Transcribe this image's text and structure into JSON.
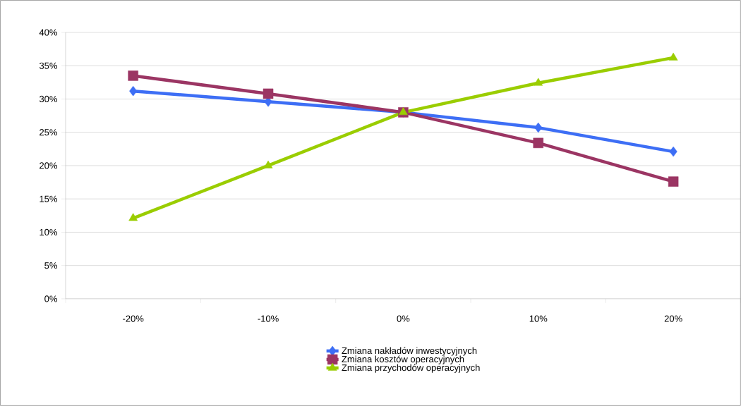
{
  "chart_data": {
    "type": "line",
    "categories": [
      "-20%",
      "-10%",
      "0%",
      "10%",
      "20%"
    ],
    "series": [
      {
        "name": "Zmiana nakładów inwestycyjnych",
        "color": "#3d6ef5",
        "marker": "diamond",
        "values": [
          31.2,
          29.6,
          28.0,
          25.7,
          22.1
        ]
      },
      {
        "name": "Zmiana kosztów operacyjnych",
        "color": "#9b3563",
        "marker": "square",
        "values": [
          33.5,
          30.8,
          28.0,
          23.4,
          17.6
        ]
      },
      {
        "name": "Zmiana przychodów operacyjnych",
        "color": "#9acd00",
        "marker": "triangle",
        "values": [
          12.1,
          20.0,
          28.0,
          32.4,
          36.2
        ]
      }
    ],
    "ylim": [
      0,
      40
    ],
    "yticks": [
      {
        "value": 0,
        "label": "0%"
      },
      {
        "value": 5,
        "label": "5%"
      },
      {
        "value": 10,
        "label": "10%"
      },
      {
        "value": 15,
        "label": "15%"
      },
      {
        "value": 20,
        "label": "20%"
      },
      {
        "value": 25,
        "label": "25%"
      },
      {
        "value": 30,
        "label": "30%"
      },
      {
        "value": 35,
        "label": "35%"
      },
      {
        "value": 40,
        "label": "40%"
      }
    ],
    "grid": "y",
    "legend": "bottom",
    "line_style": "solid"
  }
}
